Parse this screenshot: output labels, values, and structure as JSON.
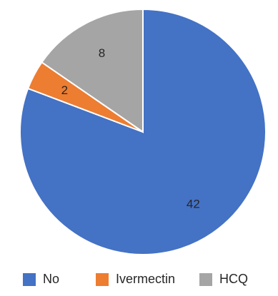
{
  "chart_data": {
    "type": "pie",
    "title": "",
    "slices": [
      {
        "label": "No",
        "value": 42,
        "color": "#4472C4"
      },
      {
        "label": "Ivermectin",
        "value": 2,
        "color": "#ED7D31"
      },
      {
        "label": "HCQ",
        "value": 8,
        "color": "#A5A5A5"
      }
    ],
    "legend_position": "bottom",
    "data_labels": true
  }
}
